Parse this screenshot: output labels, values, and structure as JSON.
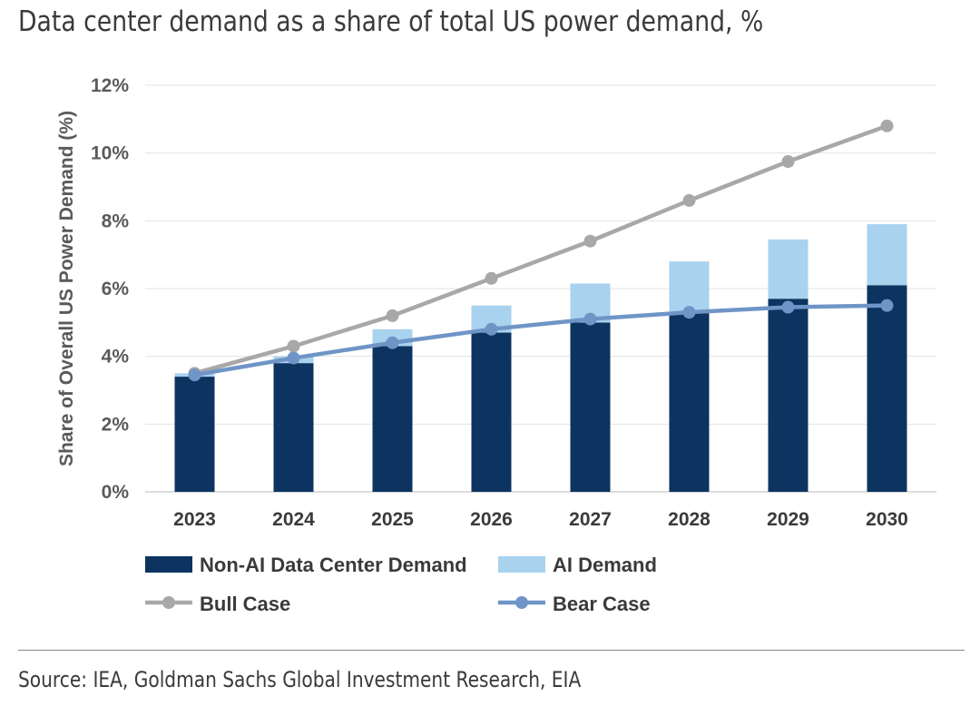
{
  "header": {
    "title": "Data center demand as a share of total US power demand, %"
  },
  "footer": {
    "source": "Source: IEA, Goldman Sachs Global Investment Research, EIA"
  },
  "colors": {
    "non_ai": "#0d3461",
    "ai": "#a9d2ee",
    "bull": "#a8a8a8",
    "bear": "#6f95c7",
    "grid": "#e3e3e3",
    "text": "#5a5a5a"
  },
  "chart_data": {
    "type": "bar",
    "stacked": true,
    "categories": [
      "2023",
      "2024",
      "2025",
      "2026",
      "2027",
      "2028",
      "2029",
      "2030"
    ],
    "series": [
      {
        "name": "Non-AI Data Center Demand",
        "kind": "bar",
        "values": [
          3.4,
          3.8,
          4.3,
          4.7,
          5.0,
          5.3,
          5.7,
          6.1
        ]
      },
      {
        "name": "AI Demand",
        "kind": "bar",
        "values": [
          0.1,
          0.2,
          0.5,
          0.8,
          1.15,
          1.5,
          1.75,
          1.8
        ]
      },
      {
        "name": "Bull Case",
        "kind": "line",
        "values": [
          3.5,
          4.3,
          5.2,
          6.3,
          7.4,
          8.6,
          9.75,
          10.8
        ]
      },
      {
        "name": "Bear Case",
        "kind": "line",
        "values": [
          3.45,
          3.95,
          4.4,
          4.8,
          5.1,
          5.3,
          5.45,
          5.5
        ]
      }
    ],
    "title": "Data center demand as a share of total US power demand, %",
    "xlabel": "",
    "ylabel": "Share of Overall US Power Demand (%)",
    "ylim": [
      0,
      12
    ],
    "yticks": [
      "0%",
      "2%",
      "4%",
      "6%",
      "8%",
      "10%",
      "12%"
    ],
    "legend": "bottom"
  }
}
